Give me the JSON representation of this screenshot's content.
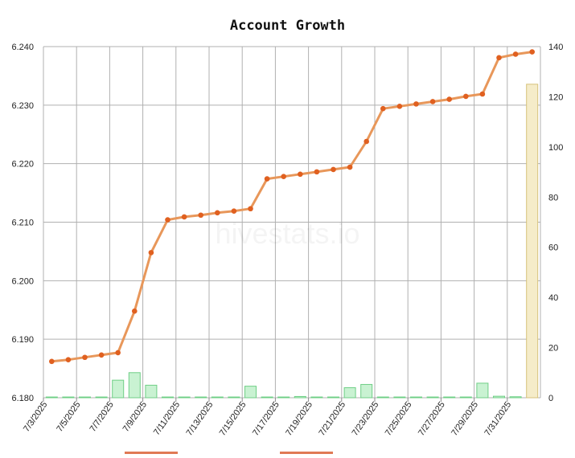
{
  "chart_data": {
    "type": "line",
    "title": "Account Growth",
    "watermark": "hivestats.io",
    "x_labels": [
      "7/3/2025",
      "7/5/2025",
      "7/7/2025",
      "7/9/2025",
      "7/11/2025",
      "7/13/2025",
      "7/15/2025",
      "7/17/2025",
      "7/19/2025",
      "7/21/2025",
      "7/23/2025",
      "7/25/2025",
      "7/27/2025",
      "7/29/2025",
      "7/31/2025"
    ],
    "dates": [
      "7/3/2025",
      "7/4/2025",
      "7/5/2025",
      "7/6/2025",
      "7/7/2025",
      "7/8/2025",
      "7/9/2025",
      "7/10/2025",
      "7/11/2025",
      "7/12/2025",
      "7/13/2025",
      "7/14/2025",
      "7/15/2025",
      "7/16/2025",
      "7/17/2025",
      "7/18/2025",
      "7/19/2025",
      "7/20/2025",
      "7/21/2025",
      "7/22/2025",
      "7/23/2025",
      "7/24/2025",
      "7/25/2025",
      "7/26/2025",
      "7/27/2025",
      "7/28/2025",
      "7/29/2025",
      "7/30/2025",
      "7/31/2025",
      "8/1/2025"
    ],
    "left_axis": {
      "min": 6.18,
      "max": 6.24,
      "ticks": [
        "6.180",
        "6.190",
        "6.200",
        "6.210",
        "6.220",
        "6.230",
        "6.240"
      ]
    },
    "right_axis": {
      "min": 0,
      "max": 140,
      "ticks": [
        "0",
        "20",
        "40",
        "60",
        "80",
        "100",
        "120",
        "140"
      ]
    },
    "grid": true,
    "series": [
      {
        "type": "line",
        "axis": "left",
        "color": "#e8975a",
        "marker_color": "#e06020",
        "values": [
          6.1862,
          6.1865,
          6.1869,
          6.1873,
          6.1877,
          6.1948,
          6.2048,
          6.2104,
          6.2109,
          6.2112,
          6.2116,
          6.2119,
          6.2123,
          6.2174,
          6.2178,
          6.2182,
          6.2186,
          6.219,
          6.2194,
          6.2238,
          6.2294,
          6.2298,
          6.2302,
          6.2306,
          6.231,
          6.2315,
          6.2319,
          6.2381,
          6.2387,
          6.2391
        ]
      },
      {
        "type": "bar",
        "axis": "right",
        "color": "#c9f2d2",
        "border": "#6fcf86",
        "values": [
          0.3,
          0.3,
          0.3,
          0.3,
          7,
          10,
          5,
          0.3,
          0.3,
          0.3,
          0.3,
          0.3,
          4.6,
          0.3,
          0.3,
          0.5,
          0.3,
          0.3,
          4,
          5.3,
          0.3,
          0.3,
          0.3,
          0.3,
          0.3,
          0.3,
          5.8,
          0.6,
          0.4,
          0
        ]
      },
      {
        "type": "bar",
        "axis": "right",
        "color": "#f5ecc9",
        "border": "#d6c27a",
        "values": [
          0,
          0,
          0,
          0,
          0,
          0,
          0,
          0,
          0,
          0,
          0,
          0,
          0,
          0,
          0,
          0,
          0,
          0,
          0,
          0,
          0,
          0,
          0,
          0,
          0,
          0,
          0,
          0,
          0,
          125
        ]
      }
    ]
  }
}
